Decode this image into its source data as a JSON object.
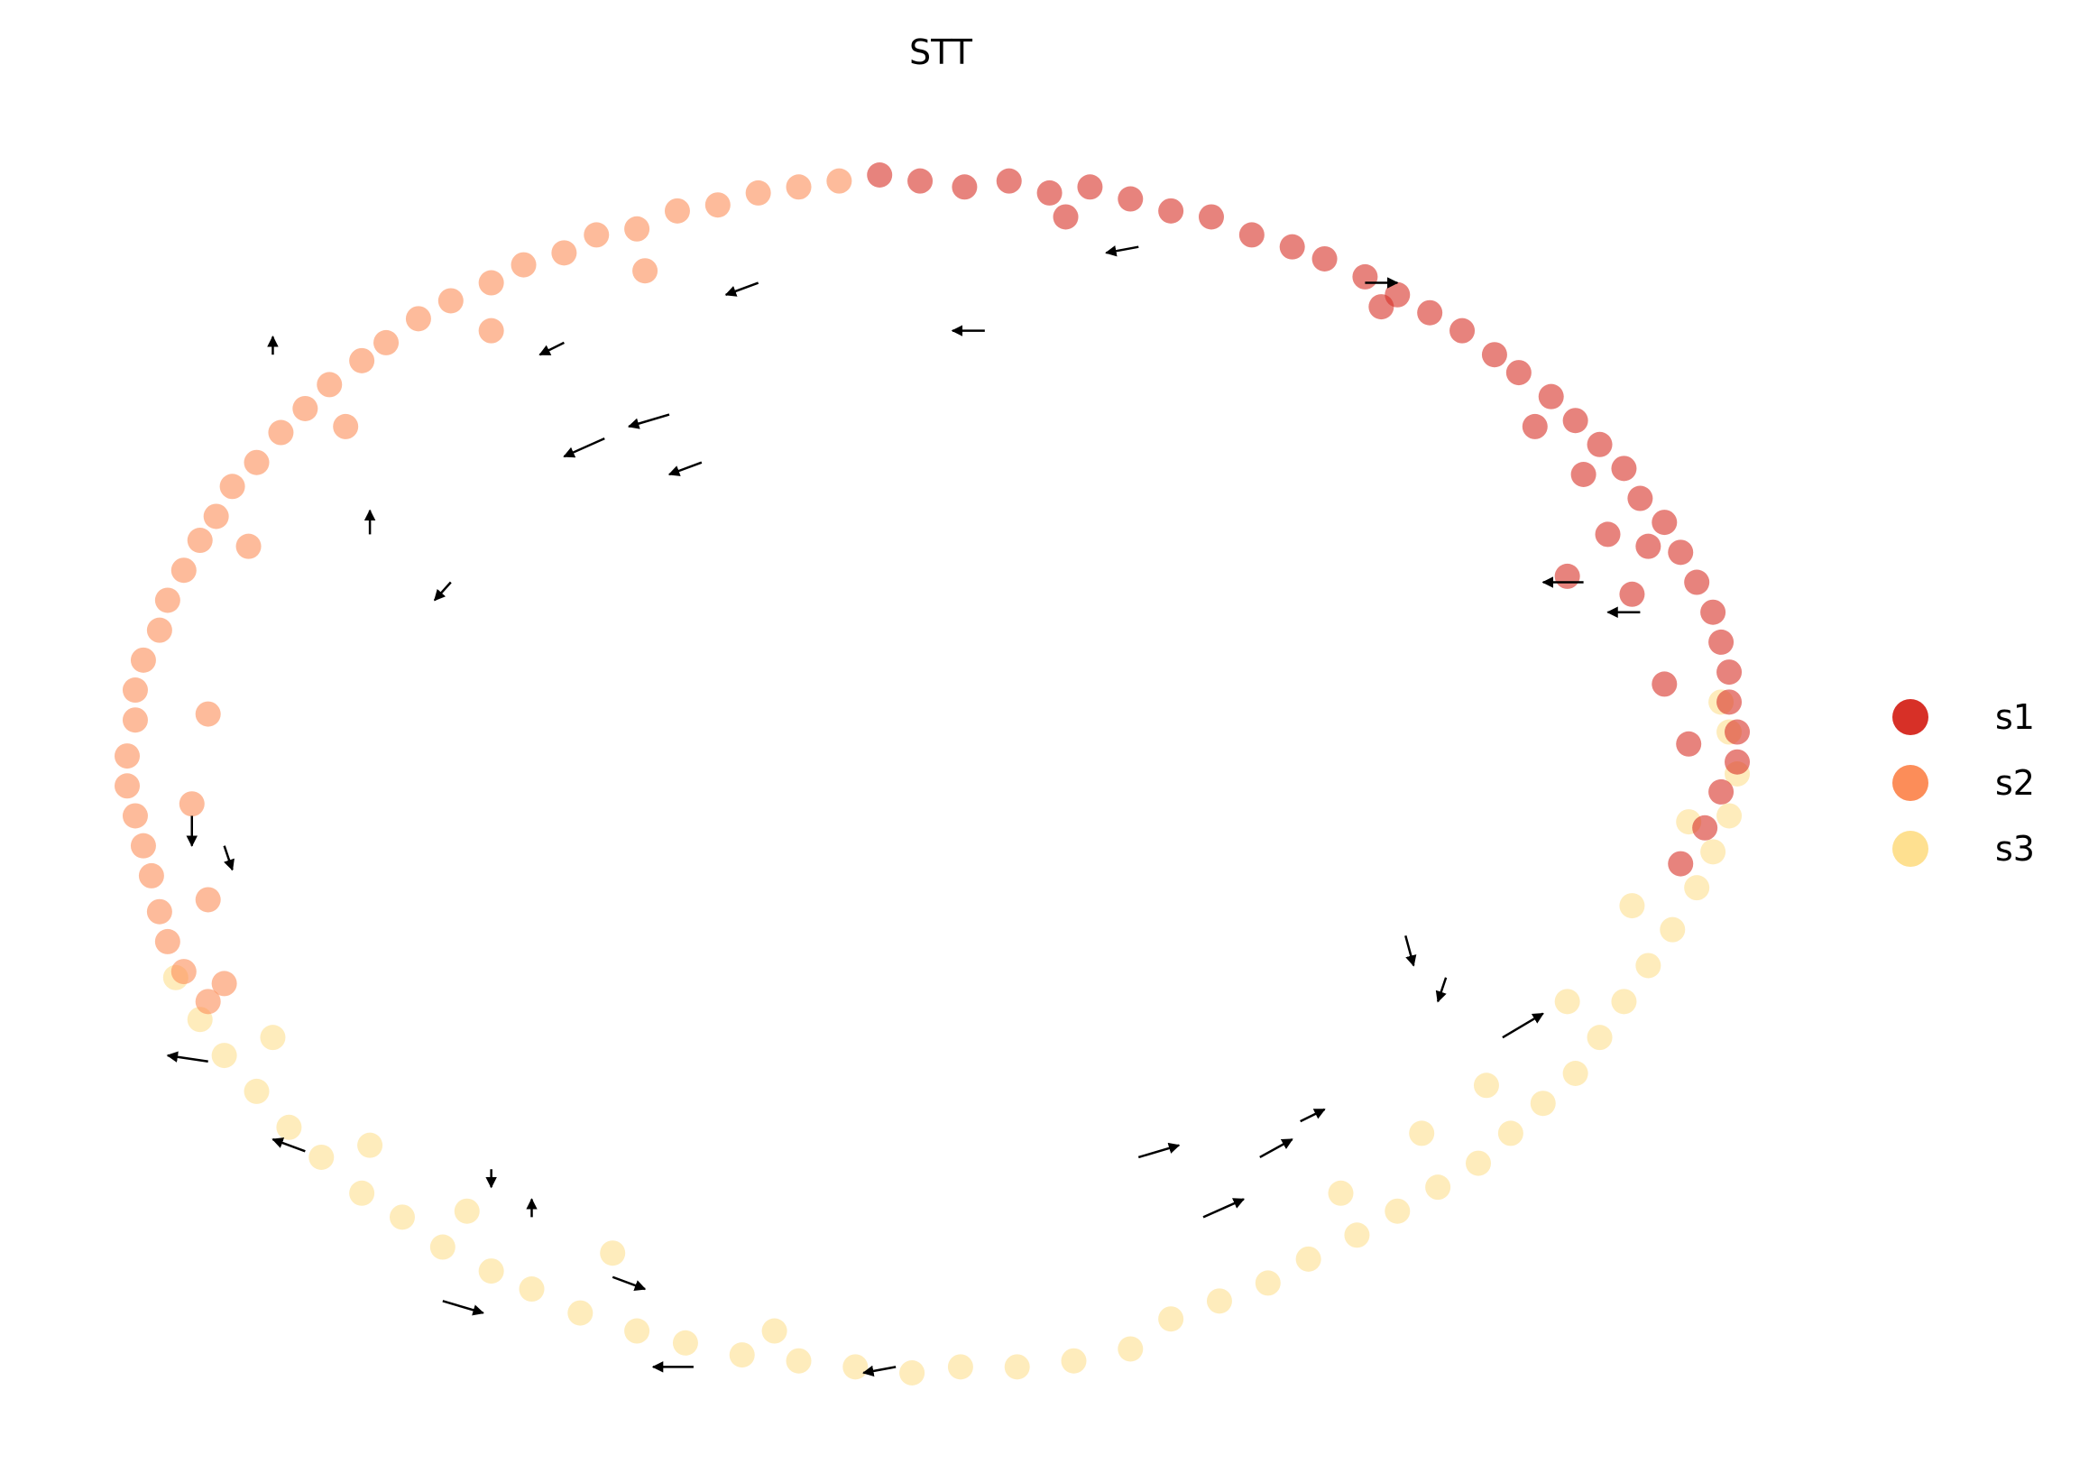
{
  "chart_data": {
    "type": "scatter",
    "title": "STT",
    "xlabel": "",
    "ylabel": "",
    "axes_visible": false,
    "grid": false,
    "xlim": [
      -1.1,
      1.1
    ],
    "ylim": [
      -1.1,
      1.1
    ],
    "legend": {
      "placement": "right",
      "entries": [
        "s1",
        "s2",
        "s3"
      ]
    },
    "colors": {
      "s1": "#d73027",
      "s2": "#fc8d59",
      "s3": "#fee090"
    },
    "point_alpha": 0.6,
    "series": [
      {
        "name": "s1",
        "points": [
          [
            -0.07,
            1.0
          ],
          [
            -0.02,
            0.99
          ],
          [
            0.035,
            0.98
          ],
          [
            0.09,
            0.99
          ],
          [
            0.14,
            0.97
          ],
          [
            0.19,
            0.98
          ],
          [
            0.24,
            0.96
          ],
          [
            0.29,
            0.94
          ],
          [
            0.34,
            0.93
          ],
          [
            0.39,
            0.9
          ],
          [
            0.44,
            0.88
          ],
          [
            0.48,
            0.86
          ],
          [
            0.53,
            0.83
          ],
          [
            0.57,
            0.8
          ],
          [
            0.61,
            0.77
          ],
          [
            0.65,
            0.74
          ],
          [
            0.69,
            0.7
          ],
          [
            0.72,
            0.67
          ],
          [
            0.76,
            0.63
          ],
          [
            0.79,
            0.59
          ],
          [
            0.82,
            0.55
          ],
          [
            0.85,
            0.51
          ],
          [
            0.87,
            0.46
          ],
          [
            0.9,
            0.42
          ],
          [
            0.92,
            0.37
          ],
          [
            0.94,
            0.32
          ],
          [
            0.96,
            0.27
          ],
          [
            0.97,
            0.22
          ],
          [
            0.98,
            0.17
          ],
          [
            0.98,
            0.12
          ],
          [
            0.99,
            0.07
          ],
          [
            0.99,
            0.02
          ],
          [
            0.97,
            -0.03
          ],
          [
            0.95,
            -0.09
          ],
          [
            0.8,
            0.5
          ],
          [
            0.83,
            0.4
          ],
          [
            0.78,
            0.33
          ],
          [
            0.86,
            0.3
          ],
          [
            0.9,
            0.15
          ],
          [
            0.93,
            0.05
          ],
          [
            0.92,
            -0.15
          ],
          [
            0.16,
            0.93
          ],
          [
            0.55,
            0.78
          ],
          [
            0.74,
            0.58
          ],
          [
            0.88,
            0.38
          ]
        ]
      },
      {
        "name": "s2",
        "points": [
          [
            -0.12,
            0.99
          ],
          [
            -0.17,
            0.98
          ],
          [
            -0.22,
            0.97
          ],
          [
            -0.27,
            0.95
          ],
          [
            -0.32,
            0.94
          ],
          [
            -0.37,
            0.91
          ],
          [
            -0.42,
            0.9
          ],
          [
            -0.46,
            0.87
          ],
          [
            -0.51,
            0.85
          ],
          [
            -0.55,
            0.82
          ],
          [
            -0.6,
            0.79
          ],
          [
            -0.64,
            0.76
          ],
          [
            -0.68,
            0.72
          ],
          [
            -0.71,
            0.69
          ],
          [
            -0.75,
            0.65
          ],
          [
            -0.78,
            0.61
          ],
          [
            -0.81,
            0.57
          ],
          [
            -0.84,
            0.52
          ],
          [
            -0.87,
            0.48
          ],
          [
            -0.89,
            0.43
          ],
          [
            -0.91,
            0.39
          ],
          [
            -0.93,
            0.34
          ],
          [
            -0.95,
            0.29
          ],
          [
            -0.96,
            0.24
          ],
          [
            -0.98,
            0.19
          ],
          [
            -0.99,
            0.14
          ],
          [
            -0.99,
            0.09
          ],
          [
            -1.0,
            0.03
          ],
          [
            -1.0,
            -0.02
          ],
          [
            -0.99,
            -0.07
          ],
          [
            -0.98,
            -0.12
          ],
          [
            -0.97,
            -0.17
          ],
          [
            -0.96,
            -0.23
          ],
          [
            -0.95,
            -0.28
          ],
          [
            -0.93,
            -0.33
          ],
          [
            -0.9,
            -0.38
          ],
          [
            -0.36,
            0.84
          ],
          [
            -0.55,
            0.74
          ],
          [
            -0.73,
            0.58
          ],
          [
            -0.85,
            0.38
          ],
          [
            -0.9,
            0.1
          ],
          [
            -0.92,
            -0.05
          ],
          [
            -0.9,
            -0.21
          ],
          [
            -0.88,
            -0.35
          ]
        ]
      },
      {
        "name": "s3",
        "points": [
          [
            -0.94,
            -0.34
          ],
          [
            -0.91,
            -0.41
          ],
          [
            -0.88,
            -0.47
          ],
          [
            -0.84,
            -0.53
          ],
          [
            -0.8,
            -0.59
          ],
          [
            -0.76,
            -0.64
          ],
          [
            -0.71,
            -0.7
          ],
          [
            -0.66,
            -0.74
          ],
          [
            -0.61,
            -0.79
          ],
          [
            -0.55,
            -0.83
          ],
          [
            -0.5,
            -0.86
          ],
          [
            -0.44,
            -0.9
          ],
          [
            -0.37,
            -0.93
          ],
          [
            -0.31,
            -0.95
          ],
          [
            -0.24,
            -0.97
          ],
          [
            -0.17,
            -0.98
          ],
          [
            -0.1,
            -0.99
          ],
          [
            -0.03,
            -1.0
          ],
          [
            0.03,
            -0.99
          ],
          [
            0.1,
            -0.99
          ],
          [
            0.17,
            -0.98
          ],
          [
            0.24,
            -0.96
          ],
          [
            0.29,
            -0.91
          ],
          [
            0.35,
            -0.88
          ],
          [
            0.41,
            -0.85
          ],
          [
            0.46,
            -0.81
          ],
          [
            0.52,
            -0.77
          ],
          [
            0.57,
            -0.73
          ],
          [
            0.62,
            -0.69
          ],
          [
            0.67,
            -0.65
          ],
          [
            0.71,
            -0.6
          ],
          [
            0.75,
            -0.55
          ],
          [
            0.79,
            -0.5
          ],
          [
            0.82,
            -0.44
          ],
          [
            0.85,
            -0.38
          ],
          [
            0.88,
            -0.32
          ],
          [
            0.91,
            -0.26
          ],
          [
            0.94,
            -0.19
          ],
          [
            0.96,
            -0.13
          ],
          [
            0.98,
            -0.07
          ],
          [
            0.99,
            0.0
          ],
          [
            0.98,
            0.07
          ],
          [
            0.97,
            0.12
          ],
          [
            -0.82,
            -0.44
          ],
          [
            -0.7,
            -0.62
          ],
          [
            -0.58,
            -0.73
          ],
          [
            -0.4,
            -0.8
          ],
          [
            -0.2,
            -0.93
          ],
          [
            0.6,
            -0.6
          ],
          [
            0.68,
            -0.52
          ],
          [
            0.5,
            -0.7
          ],
          [
            0.78,
            -0.38
          ],
          [
            0.86,
            -0.22
          ],
          [
            0.93,
            -0.08
          ]
        ]
      }
    ],
    "arrows": [
      [
        -0.33,
        0.6,
        -0.05,
        -0.02
      ],
      [
        -0.41,
        0.56,
        -0.05,
        -0.03
      ],
      [
        -0.29,
        0.52,
        -0.04,
        -0.02
      ],
      [
        -0.7,
        0.4,
        0.0,
        0.04
      ],
      [
        -0.6,
        0.32,
        -0.02,
        -0.03
      ],
      [
        -0.92,
        -0.07,
        0.0,
        -0.05
      ],
      [
        -0.88,
        -0.12,
        0.01,
        -0.04
      ],
      [
        -0.9,
        -0.48,
        -0.05,
        0.01
      ],
      [
        -0.78,
        -0.63,
        -0.04,
        0.02
      ],
      [
        -0.55,
        -0.66,
        0.0,
        -0.03
      ],
      [
        -0.5,
        -0.74,
        0.0,
        0.03
      ],
      [
        -0.4,
        -0.84,
        0.04,
        -0.02
      ],
      [
        -0.3,
        -0.99,
        -0.05,
        0.0
      ],
      [
        -0.05,
        -0.99,
        -0.04,
        -0.01
      ],
      [
        0.25,
        -0.64,
        0.05,
        0.02
      ],
      [
        0.33,
        -0.74,
        0.05,
        0.03
      ],
      [
        0.4,
        -0.64,
        0.04,
        0.03
      ],
      [
        0.45,
        -0.58,
        0.03,
        0.02
      ],
      [
        0.58,
        -0.27,
        0.01,
        -0.05
      ],
      [
        0.63,
        -0.34,
        -0.01,
        -0.04
      ],
      [
        0.87,
        0.27,
        -0.04,
        0.0
      ],
      [
        0.8,
        0.32,
        -0.05,
        0.0
      ],
      [
        0.53,
        0.82,
        0.04,
        0.0
      ],
      [
        0.25,
        0.88,
        -0.04,
        -0.01
      ],
      [
        -0.22,
        0.82,
        -0.04,
        -0.02
      ],
      [
        -0.46,
        0.72,
        -0.03,
        -0.02
      ],
      [
        0.7,
        -0.44,
        0.05,
        0.04
      ],
      [
        -0.82,
        0.7,
        0.0,
        0.03
      ],
      [
        -0.61,
        -0.88,
        0.05,
        -0.02
      ],
      [
        0.06,
        0.74,
        -0.04,
        0.0
      ]
    ]
  }
}
